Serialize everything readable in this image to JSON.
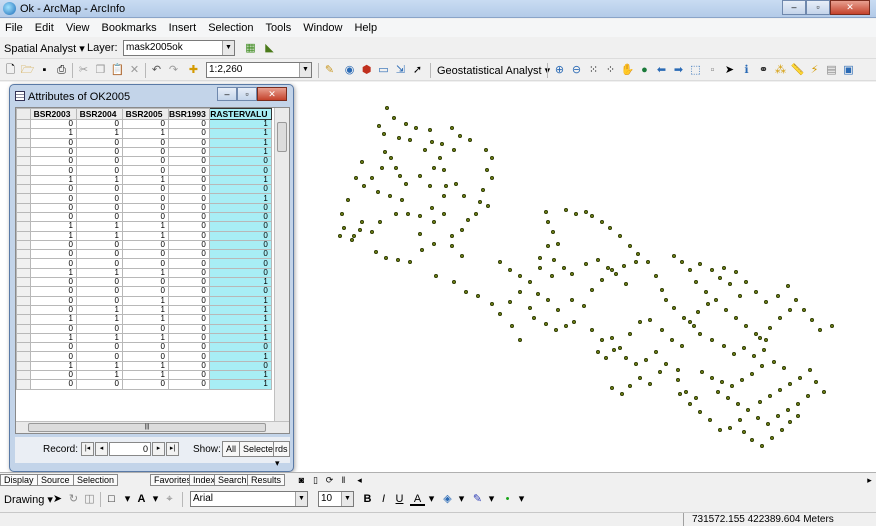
{
  "window": {
    "title": "Ok - ArcMap - ArcInfo",
    "min": "–",
    "max": "▫",
    "close": "✕"
  },
  "menu": [
    "File",
    "Edit",
    "View",
    "Bookmarks",
    "Insert",
    "Selection",
    "Tools",
    "Window",
    "Help"
  ],
  "spatial_toolbar": {
    "label": "Spatial Analyst ▾",
    "layer_label": "Layer:",
    "layer_value": "mask2005ok"
  },
  "standard_toolbar": {
    "scale": "1:2,260",
    "geostat": "Geostatistical Analyst ▾"
  },
  "attributes": {
    "title": "Attributes of OK2005",
    "columns": [
      "BSR2003",
      "BSR2004",
      "BSR2005",
      "BSR1993",
      "RASTERVALU"
    ],
    "rows": [
      [
        "0",
        "0",
        "0",
        "0",
        "1"
      ],
      [
        "1",
        "1",
        "1",
        "0",
        "1"
      ],
      [
        "0",
        "0",
        "0",
        "0",
        "1"
      ],
      [
        "0",
        "0",
        "0",
        "0",
        "1"
      ],
      [
        "0",
        "0",
        "0",
        "0",
        "0"
      ],
      [
        "0",
        "0",
        "0",
        "0",
        "0"
      ],
      [
        "1",
        "1",
        "1",
        "0",
        "1"
      ],
      [
        "0",
        "0",
        "0",
        "0",
        "0"
      ],
      [
        "0",
        "0",
        "0",
        "0",
        "1"
      ],
      [
        "0",
        "0",
        "0",
        "0",
        "0"
      ],
      [
        "0",
        "0",
        "0",
        "0",
        "0"
      ],
      [
        "1",
        "1",
        "1",
        "0",
        "0"
      ],
      [
        "1",
        "1",
        "1",
        "0",
        "0"
      ],
      [
        "0",
        "0",
        "0",
        "0",
        "0"
      ],
      [
        "0",
        "0",
        "0",
        "0",
        "0"
      ],
      [
        "0",
        "0",
        "0",
        "0",
        "0"
      ],
      [
        "1",
        "1",
        "1",
        "0",
        "0"
      ],
      [
        "0",
        "0",
        "0",
        "0",
        "1"
      ],
      [
        "0",
        "0",
        "0",
        "0",
        "0"
      ],
      [
        "0",
        "0",
        "1",
        "0",
        "1"
      ],
      [
        "0",
        "1",
        "1",
        "0",
        "1"
      ],
      [
        "1",
        "1",
        "1",
        "0",
        "1"
      ],
      [
        "0",
        "0",
        "0",
        "0",
        "1"
      ],
      [
        "1",
        "1",
        "1",
        "0",
        "1"
      ],
      [
        "0",
        "0",
        "0",
        "0",
        "0"
      ],
      [
        "0",
        "0",
        "0",
        "0",
        "1"
      ],
      [
        "1",
        "1",
        "1",
        "0",
        "0"
      ],
      [
        "0",
        "1",
        "1",
        "0",
        "1"
      ],
      [
        "0",
        "0",
        "0",
        "0",
        "1"
      ]
    ],
    "record_label": "Record:",
    "record_value": "0",
    "show_label": "Show:",
    "show_all": "All",
    "show_selected": "Selected",
    "records_label": "rds ▾"
  },
  "tabs": [
    "Display",
    "Source",
    "Selection",
    "Favorites",
    "Index",
    "Search",
    "Results"
  ],
  "drawing_toolbar": {
    "label": "Drawing ▾",
    "font": "Arial",
    "size": "10"
  },
  "status": {
    "coords": "731572.155  422389.604 Meters"
  }
}
